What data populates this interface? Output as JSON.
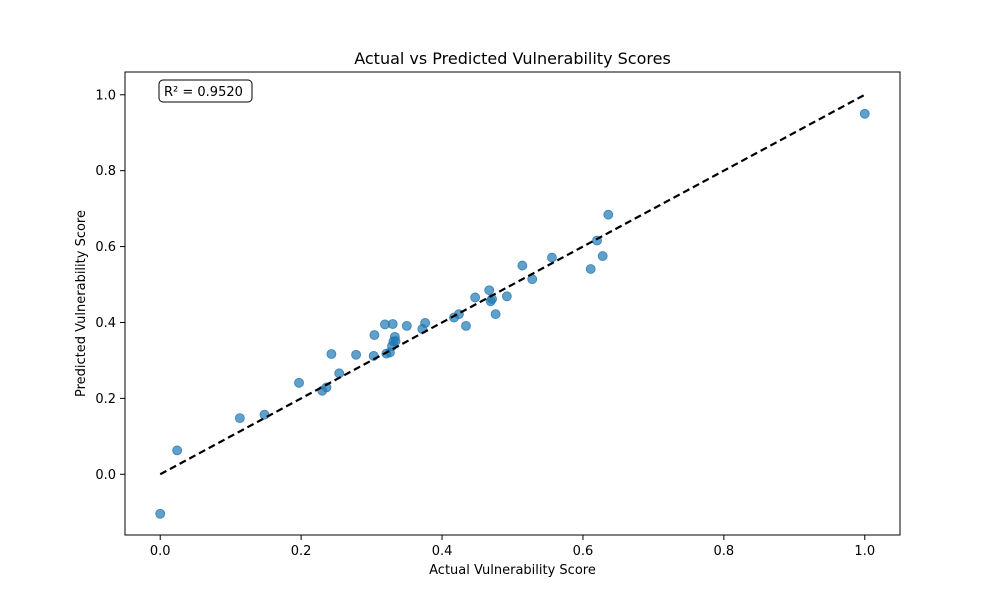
{
  "chart_data": {
    "type": "scatter",
    "title": "Actual vs Predicted Vulnerability Scores",
    "xlabel": "Actual Vulnerability Score",
    "ylabel": "Predicted Vulnerability Score",
    "xlim": [
      -0.05,
      1.05
    ],
    "ylim": [
      -0.16,
      1.06
    ],
    "xticks": [
      0.0,
      0.2,
      0.4,
      0.6,
      0.8,
      1.0
    ],
    "xtick_labels": [
      "0.0",
      "0.2",
      "0.4",
      "0.6",
      "0.8",
      "1.0"
    ],
    "yticks": [
      0.0,
      0.2,
      0.4,
      0.6,
      0.8,
      1.0
    ],
    "ytick_labels": [
      "0.0",
      "0.2",
      "0.4",
      "0.6",
      "0.8",
      "1.0"
    ],
    "grid": false,
    "annotation": "R² = 0.9520",
    "reference_line": {
      "x": [
        0,
        1
      ],
      "y": [
        0,
        1
      ],
      "style": "dashed",
      "color": "#000000"
    },
    "point_color": "#1f77b4",
    "points": [
      {
        "x": 0.0,
        "y": -0.104
      },
      {
        "x": 0.024,
        "y": 0.063
      },
      {
        "x": 0.113,
        "y": 0.148
      },
      {
        "x": 0.148,
        "y": 0.157
      },
      {
        "x": 0.197,
        "y": 0.241
      },
      {
        "x": 0.23,
        "y": 0.22
      },
      {
        "x": 0.236,
        "y": 0.229
      },
      {
        "x": 0.243,
        "y": 0.317
      },
      {
        "x": 0.254,
        "y": 0.266
      },
      {
        "x": 0.278,
        "y": 0.315
      },
      {
        "x": 0.303,
        "y": 0.312
      },
      {
        "x": 0.304,
        "y": 0.367
      },
      {
        "x": 0.319,
        "y": 0.395
      },
      {
        "x": 0.321,
        "y": 0.318
      },
      {
        "x": 0.326,
        "y": 0.321
      },
      {
        "x": 0.329,
        "y": 0.338
      },
      {
        "x": 0.33,
        "y": 0.396
      },
      {
        "x": 0.331,
        "y": 0.35
      },
      {
        "x": 0.333,
        "y": 0.362
      },
      {
        "x": 0.334,
        "y": 0.351
      },
      {
        "x": 0.35,
        "y": 0.391
      },
      {
        "x": 0.372,
        "y": 0.383
      },
      {
        "x": 0.376,
        "y": 0.399
      },
      {
        "x": 0.417,
        "y": 0.413
      },
      {
        "x": 0.424,
        "y": 0.422
      },
      {
        "x": 0.434,
        "y": 0.391
      },
      {
        "x": 0.447,
        "y": 0.466
      },
      {
        "x": 0.467,
        "y": 0.485
      },
      {
        "x": 0.469,
        "y": 0.456
      },
      {
        "x": 0.471,
        "y": 0.462
      },
      {
        "x": 0.476,
        "y": 0.422
      },
      {
        "x": 0.492,
        "y": 0.469
      },
      {
        "x": 0.514,
        "y": 0.55
      },
      {
        "x": 0.528,
        "y": 0.514
      },
      {
        "x": 0.556,
        "y": 0.571
      },
      {
        "x": 0.611,
        "y": 0.541
      },
      {
        "x": 0.62,
        "y": 0.616
      },
      {
        "x": 0.628,
        "y": 0.575
      },
      {
        "x": 0.636,
        "y": 0.684
      },
      {
        "x": 1.0,
        "y": 0.95
      }
    ]
  }
}
